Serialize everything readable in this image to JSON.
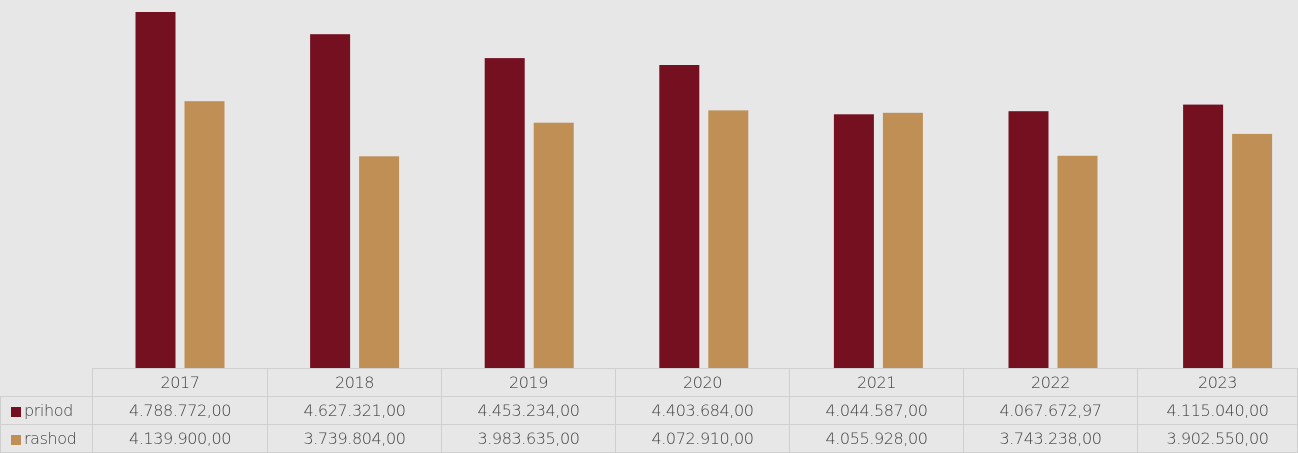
{
  "chart_data": {
    "type": "bar",
    "categories": [
      "2017",
      "2018",
      "2019",
      "2020",
      "2021",
      "2022",
      "2023"
    ],
    "series": [
      {
        "name": "prihod",
        "color": "#741020",
        "values": [
          4788772.0,
          4627321.0,
          4453234.0,
          4403684.0,
          4044587.0,
          4067672.97,
          4115040.0
        ],
        "labels": [
          "4.788.772,00",
          "4.627.321,00",
          "4.453.234,00",
          "4.403.684,00",
          "4.044.587,00",
          "4.067.672,97",
          "4.115.040,00"
        ]
      },
      {
        "name": "rashod",
        "color": "#bf8f55",
        "values": [
          4139900.0,
          3739804.0,
          3983635.0,
          4072910.0,
          4055928.0,
          3743238.0,
          3902550.0
        ],
        "labels": [
          "4.139.900,00",
          "3.739.804,00",
          "3.983.635,00",
          "4.072.910,00",
          "4.055.928,00",
          "3.743.238,00",
          "3.902.550,00"
        ]
      }
    ],
    "ylim": [
      0,
      5000000
    ],
    "grid": false,
    "legend": "data-table"
  }
}
